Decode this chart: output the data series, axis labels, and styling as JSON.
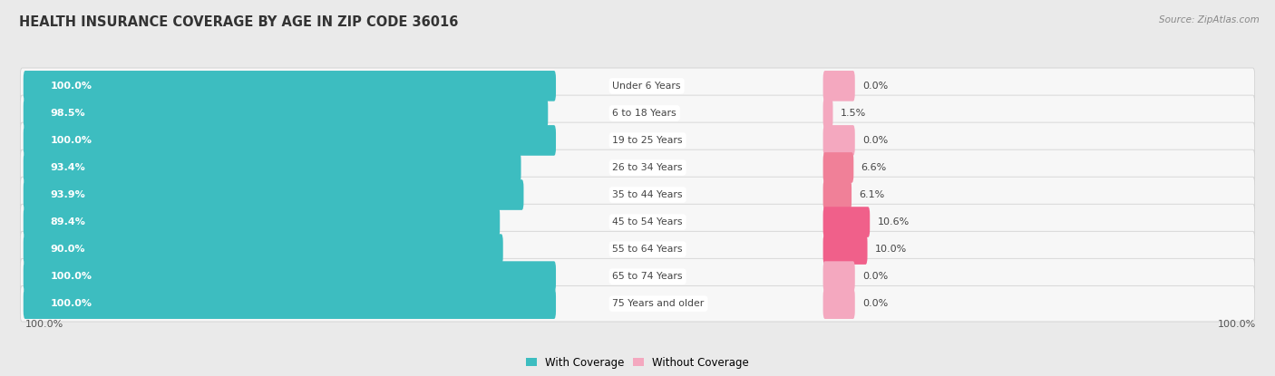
{
  "title": "HEALTH INSURANCE COVERAGE BY AGE IN ZIP CODE 36016",
  "source": "Source: ZipAtlas.com",
  "categories": [
    "Under 6 Years",
    "6 to 18 Years",
    "19 to 25 Years",
    "26 to 34 Years",
    "35 to 44 Years",
    "45 to 54 Years",
    "55 to 64 Years",
    "65 to 74 Years",
    "75 Years and older"
  ],
  "with_coverage": [
    100.0,
    98.5,
    100.0,
    93.4,
    93.9,
    89.4,
    90.0,
    100.0,
    100.0
  ],
  "without_coverage": [
    0.0,
    1.5,
    0.0,
    6.6,
    6.1,
    10.6,
    10.0,
    0.0,
    0.0
  ],
  "color_with": "#3DBDC0",
  "color_without_high": "#F0608A",
  "color_without_low": "#F4A8BF",
  "bg_color": "#eaeaea",
  "row_bg_color": "#f4f4f4",
  "row_bg_color2": "#ffffff",
  "title_fontsize": 10.5,
  "label_fontsize": 8.0,
  "legend_fontsize": 8.5,
  "source_fontsize": 7.5,
  "footer_label": "100.0%"
}
